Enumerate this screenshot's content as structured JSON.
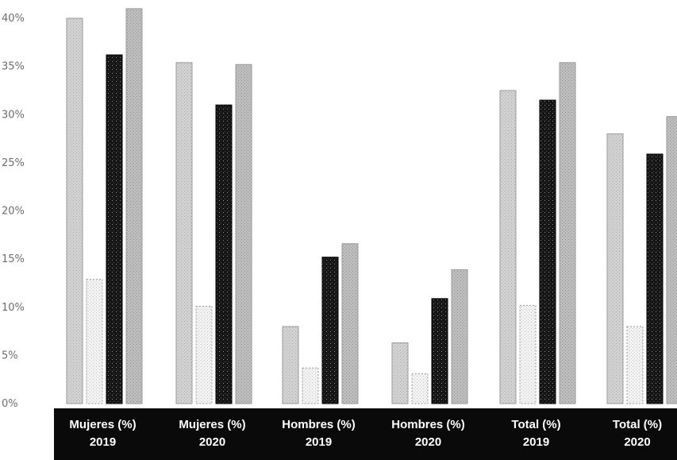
{
  "chart_data": {
    "type": "bar",
    "title": "",
    "xlabel": "",
    "ylabel": "",
    "ylim": [
      0,
      40
    ],
    "yticks": [
      0,
      5,
      10,
      15,
      20,
      25,
      30,
      35,
      40
    ],
    "ytick_labels": [
      "0%",
      "5%",
      "10%",
      "15%",
      "20%",
      "25%",
      "30%",
      "35%",
      "40%"
    ],
    "grid": false,
    "legend": "none",
    "categories": [
      [
        "Mujeres (%)",
        "2019"
      ],
      [
        "Mujeres (%)",
        "2020"
      ],
      [
        "Hombres (%)",
        "2019"
      ],
      [
        "Hombres (%)",
        "2020"
      ],
      [
        "Total (%)",
        "2019"
      ],
      [
        "Total (%)",
        "2020"
      ]
    ],
    "series": [
      {
        "values": [
          40.0,
          35.4,
          8.0,
          6.3,
          32.5,
          28.0
        ],
        "color": "#c4c4c4",
        "pattern": "light"
      },
      {
        "values": [
          12.9,
          10.1,
          3.7,
          3.1,
          10.2,
          8.0
        ],
        "color": "#ebebeb",
        "pattern": "dots"
      },
      {
        "values": [
          36.2,
          31.0,
          15.2,
          10.9,
          31.5,
          25.9
        ],
        "color": "#1c1c1c",
        "pattern": "dark"
      },
      {
        "values": [
          41.0,
          35.2,
          16.6,
          13.9,
          35.4,
          29.8
        ],
        "color": "#b2b2b2",
        "pattern": "medium"
      }
    ]
  }
}
